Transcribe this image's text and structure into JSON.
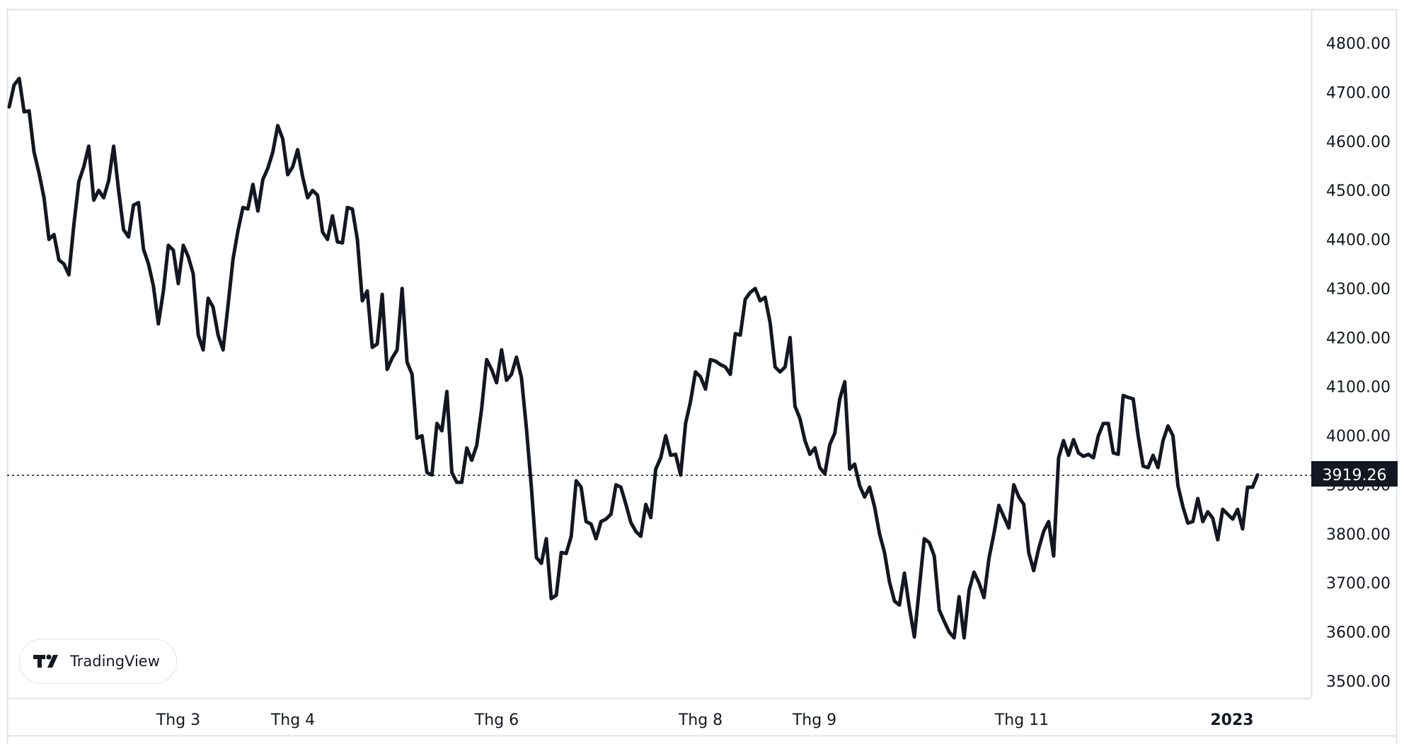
{
  "brand": {
    "name": "TradingView"
  },
  "colors": {
    "line": "#131722",
    "price_label_bg": "#131722",
    "price_label_text": "#ffffff",
    "grid_border": "#e0e3eb",
    "dotted_line": "#131722"
  },
  "chart_data": {
    "type": "line",
    "title": "",
    "xlabel": "",
    "ylabel": "",
    "ylim": [
      3500,
      4800
    ],
    "y_ticks": [
      "4800.00",
      "4700.00",
      "4600.00",
      "4500.00",
      "4400.00",
      "4300.00",
      "4200.00",
      "4100.00",
      "4000.00",
      "3900.00",
      "3800.00",
      "3700.00",
      "3600.00",
      "3500.00"
    ],
    "x_tick_labels": [
      "Thg 3",
      "Thg 4",
      "Thg 6",
      "Thg 8",
      "Thg 9",
      "Thg 11",
      "2023"
    ],
    "last_price": 3919.26,
    "last_price_label": "3919.26",
    "grid": false,
    "legend": "none",
    "series": [
      {
        "values": [
          4670,
          4715,
          4728,
          4660,
          4662,
          4578,
          4535,
          4485,
          4400,
          4410,
          4358,
          4350,
          4328,
          4430,
          4518,
          4548,
          4590,
          4480,
          4500,
          4485,
          4520,
          4590,
          4500,
          4420,
          4405,
          4470,
          4475,
          4380,
          4350,
          4305,
          4228,
          4295,
          4388,
          4378,
          4310,
          4388,
          4365,
          4330,
          4205,
          4175,
          4280,
          4262,
          4205,
          4175,
          4265,
          4360,
          4418,
          4465,
          4462,
          4512,
          4458,
          4522,
          4545,
          4578,
          4632,
          4605,
          4532,
          4548,
          4583,
          4528,
          4485,
          4500,
          4490,
          4415,
          4400,
          4448,
          4395,
          4393,
          4465,
          4462,
          4400,
          4275,
          4295,
          4180,
          4187,
          4288,
          4135,
          4158,
          4175,
          4300,
          4150,
          4125,
          3995,
          4000,
          3925,
          3920,
          4025,
          4010,
          4090,
          3925,
          3905,
          3905,
          3975,
          3950,
          3980,
          4055,
          4155,
          4135,
          4108,
          4175,
          4113,
          4125,
          4160,
          4118,
          4015,
          3895,
          3752,
          3740,
          3790,
          3668,
          3675,
          3762,
          3760,
          3795,
          3908,
          3895,
          3825,
          3820,
          3790,
          3825,
          3830,
          3840,
          3900,
          3895,
          3860,
          3823,
          3805,
          3795,
          3860,
          3833,
          3932,
          3955,
          4000,
          3960,
          3962,
          3920,
          4025,
          4070,
          4130,
          4120,
          4095,
          4155,
          4152,
          4145,
          4140,
          4125,
          4208,
          4205,
          4278,
          4292,
          4300,
          4275,
          4282,
          4230,
          4140,
          4130,
          4140,
          4200,
          4060,
          4035,
          3990,
          3962,
          3975,
          3935,
          3922,
          3982,
          4005,
          4075,
          4110,
          3932,
          3942,
          3898,
          3875,
          3895,
          3855,
          3800,
          3762,
          3702,
          3663,
          3655,
          3720,
          3650,
          3590,
          3690,
          3790,
          3782,
          3755,
          3645,
          3622,
          3600,
          3588,
          3672,
          3588,
          3685,
          3722,
          3700,
          3670,
          3750,
          3800,
          3858,
          3835,
          3812,
          3900,
          3875,
          3860,
          3762,
          3725,
          3770,
          3805,
          3825,
          3755,
          3955,
          3990,
          3960,
          3992,
          3965,
          3958,
          3962,
          3955,
          4000,
          4025,
          4025,
          3965,
          3962,
          4082,
          4078,
          4075,
          4000,
          3938,
          3935,
          3960,
          3935,
          3990,
          4020,
          4000,
          3898,
          3855,
          3822,
          3825,
          3872,
          3825,
          3845,
          3832,
          3788,
          3850,
          3840,
          3830,
          3850,
          3810,
          3895,
          3895,
          3920
        ]
      }
    ]
  }
}
